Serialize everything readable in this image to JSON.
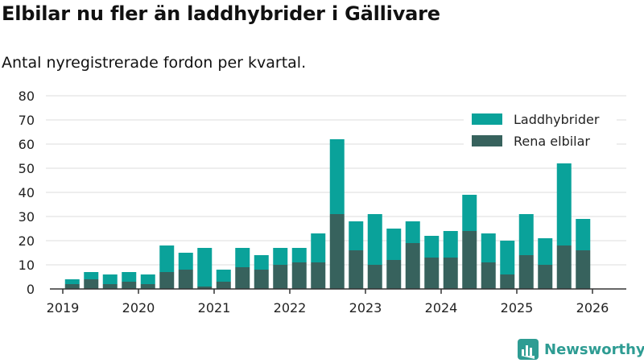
{
  "header": {
    "title": "Elbilar nu fler än laddhybrider i Gällivare",
    "subtitle": "Antal nyregistrerade fordon per kvartal."
  },
  "brand": {
    "name": "Newsworthy",
    "color": "#2e9c93"
  },
  "colors": {
    "phev": "#0aa29a",
    "ev": "#37625d",
    "grid": "#dddddd",
    "axis": "#333333",
    "text": "#222222"
  },
  "chart_data": {
    "type": "bar",
    "stacked": true,
    "title": "Elbilar nu fler än laddhybrider i Gällivare",
    "subtitle": "Antal nyregistrerade fordon per kvartal.",
    "xlabel": "",
    "ylabel": "",
    "ylim": [
      0,
      80
    ],
    "yticks": [
      "0",
      "10",
      "20",
      "30",
      "40",
      "50",
      "60",
      "70",
      "80"
    ],
    "xticks": [
      "2019",
      "2020",
      "2021",
      "2022",
      "2023",
      "2024",
      "2025",
      "2026"
    ],
    "legend_position": "top-right",
    "categories": [
      "2019 Q2",
      "2019 Q3",
      "2019 Q4",
      "2020 Q1",
      "2020 Q2",
      "2020 Q3",
      "2020 Q4",
      "2021 Q1",
      "2021 Q2",
      "2021 Q3",
      "2021 Q4",
      "2022 Q1",
      "2022 Q2",
      "2022 Q3",
      "2022 Q4",
      "2023 Q1",
      "2023 Q2",
      "2023 Q3",
      "2023 Q4",
      "2024 Q1",
      "2024 Q2",
      "2024 Q3",
      "2024 Q4",
      "2025 Q1",
      "2025 Q2",
      "2025 Q3",
      "2025 Q4",
      "2026 Q1"
    ],
    "series": [
      {
        "name": "Rena elbilar",
        "color": "#37625d",
        "values": [
          2,
          4,
          2,
          3,
          2,
          7,
          8,
          1,
          3,
          9,
          8,
          10,
          11,
          11,
          31,
          16,
          10,
          12,
          19,
          13,
          13,
          24,
          11,
          6,
          14,
          10,
          18,
          16
        ]
      },
      {
        "name": "Laddhybrider",
        "color": "#0aa29a",
        "values": [
          2,
          3,
          4,
          4,
          4,
          11,
          7,
          16,
          5,
          8,
          6,
          7,
          6,
          12,
          31,
          12,
          21,
          13,
          9,
          9,
          11,
          15,
          12,
          14,
          17,
          11,
          34,
          13
        ]
      }
    ],
    "legend": [
      "Laddhybrider",
      "Rena elbilar"
    ]
  }
}
